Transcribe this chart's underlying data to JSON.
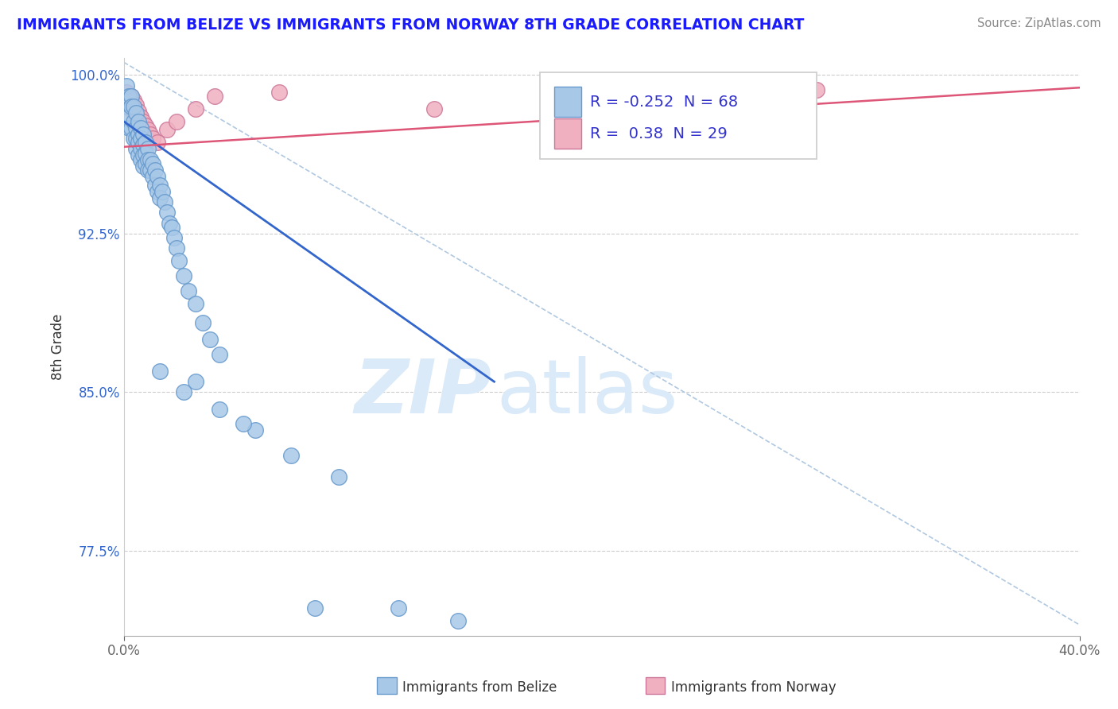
{
  "title": "IMMIGRANTS FROM BELIZE VS IMMIGRANTS FROM NORWAY 8TH GRADE CORRELATION CHART",
  "source_text": "Source: ZipAtlas.com",
  "xlabel_belize": "Immigrants from Belize",
  "xlabel_norway": "Immigrants from Norway",
  "ylabel": "8th Grade",
  "xlim": [
    0.0,
    0.4
  ],
  "ylim": [
    0.735,
    1.008
  ],
  "yticks": [
    0.775,
    0.85,
    0.925,
    1.0
  ],
  "ytick_labels": [
    "77.5%",
    "85.0%",
    "92.5%",
    "100.0%"
  ],
  "xticks": [
    0.0,
    0.4
  ],
  "xtick_labels": [
    "0.0%",
    "40.0%"
  ],
  "R_belize": -0.252,
  "N_belize": 68,
  "R_norway": 0.38,
  "N_norway": 29,
  "color_belize": "#a8c8e8",
  "color_belize_edge": "#6699cc",
  "color_belize_line": "#3366cc",
  "color_norway": "#f0b0c0",
  "color_norway_edge": "#cc7799",
  "color_norway_line": "#dd5577",
  "color_diag_line": "#b0c8e0",
  "background_color": "#ffffff",
  "title_color": "#1a1aff",
  "legend_R_color": "#3333cc",
  "watermark_color": "#daeaf8",
  "belize_x": [
    0.001,
    0.001,
    0.002,
    0.002,
    0.002,
    0.003,
    0.003,
    0.003,
    0.004,
    0.004,
    0.004,
    0.005,
    0.005,
    0.005,
    0.005,
    0.006,
    0.006,
    0.006,
    0.006,
    0.007,
    0.007,
    0.007,
    0.007,
    0.008,
    0.008,
    0.008,
    0.008,
    0.009,
    0.009,
    0.009,
    0.01,
    0.01,
    0.01,
    0.011,
    0.011,
    0.012,
    0.012,
    0.013,
    0.013,
    0.014,
    0.014,
    0.015,
    0.015,
    0.016,
    0.017,
    0.018,
    0.019,
    0.02,
    0.021,
    0.022,
    0.023,
    0.025,
    0.027,
    0.03,
    0.033,
    0.036,
    0.04,
    0.015,
    0.025,
    0.04,
    0.055,
    0.07,
    0.09,
    0.115,
    0.14,
    0.03,
    0.05,
    0.08
  ],
  "belize_y": [
    0.995,
    0.985,
    0.99,
    0.98,
    0.975,
    0.99,
    0.985,
    0.975,
    0.985,
    0.978,
    0.97,
    0.982,
    0.975,
    0.97,
    0.965,
    0.978,
    0.972,
    0.968,
    0.962,
    0.975,
    0.97,
    0.965,
    0.96,
    0.972,
    0.967,
    0.962,
    0.957,
    0.968,
    0.963,
    0.958,
    0.965,
    0.96,
    0.955,
    0.96,
    0.955,
    0.958,
    0.952,
    0.955,
    0.948,
    0.952,
    0.945,
    0.948,
    0.942,
    0.945,
    0.94,
    0.935,
    0.93,
    0.928,
    0.923,
    0.918,
    0.912,
    0.905,
    0.898,
    0.892,
    0.883,
    0.875,
    0.868,
    0.86,
    0.85,
    0.842,
    0.832,
    0.82,
    0.81,
    0.748,
    0.742,
    0.855,
    0.835,
    0.748
  ],
  "norway_x": [
    0.001,
    0.001,
    0.002,
    0.002,
    0.003,
    0.003,
    0.004,
    0.004,
    0.005,
    0.005,
    0.006,
    0.006,
    0.007,
    0.007,
    0.008,
    0.008,
    0.009,
    0.01,
    0.011,
    0.012,
    0.014,
    0.018,
    0.022,
    0.03,
    0.038,
    0.065,
    0.13,
    0.22,
    0.29
  ],
  "norway_y": [
    0.992,
    0.988,
    0.99,
    0.985,
    0.99,
    0.984,
    0.988,
    0.982,
    0.986,
    0.979,
    0.983,
    0.976,
    0.98,
    0.974,
    0.978,
    0.972,
    0.976,
    0.974,
    0.972,
    0.97,
    0.968,
    0.974,
    0.978,
    0.984,
    0.99,
    0.992,
    0.984,
    0.992,
    0.993
  ],
  "belize_trend_x": [
    0.0,
    0.155
  ],
  "belize_trend_y": [
    0.978,
    0.855
  ],
  "norway_trend_x": [
    0.0,
    0.4
  ],
  "norway_trend_y": [
    0.966,
    0.994
  ]
}
